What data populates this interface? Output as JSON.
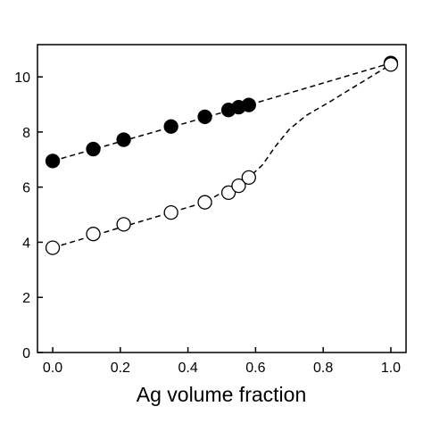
{
  "chart_data": {
    "type": "scatter",
    "xlabel": "Ag volume fraction",
    "xlim": [
      -0.045,
      1.045
    ],
    "ylim": [
      0,
      11.17
    ],
    "xticks": [
      {
        "value": 0,
        "label": "0.0"
      },
      {
        "value": 0.2,
        "label": "0.2"
      },
      {
        "value": 0.4,
        "label": "0.4"
      },
      {
        "value": 0.6,
        "label": "0.6"
      },
      {
        "value": 0.8,
        "label": "0.8"
      },
      {
        "value": 1,
        "label": "1.0"
      }
    ],
    "yticks": [
      0,
      2,
      4,
      6,
      8,
      10
    ],
    "series": [
      {
        "marker": "filled",
        "color": "#000000",
        "x": [
          0,
          0.12,
          0.21,
          0.35,
          0.45,
          0.52,
          0.55,
          0.58,
          1.0
        ],
        "values": [
          6.95,
          7.38,
          7.72,
          8.2,
          8.55,
          8.8,
          8.9,
          8.98,
          10.5
        ]
      },
      {
        "marker": "open",
        "color": "#000000",
        "x": [
          0,
          0.12,
          0.21,
          0.35,
          0.45,
          0.52,
          0.55,
          0.58,
          1.0
        ],
        "values": [
          3.8,
          4.3,
          4.65,
          5.08,
          5.45,
          5.8,
          6.05,
          6.35,
          10.45
        ]
      }
    ],
    "fits": [
      {
        "x": [
          0,
          0.58,
          1.0
        ],
        "values": [
          6.95,
          8.98,
          10.5
        ]
      },
      {
        "x": [
          0,
          0.45,
          0.58,
          0.62,
          0.66,
          0.7,
          0.75,
          0.82,
          0.9,
          1.0
        ],
        "values": [
          3.8,
          5.45,
          6.35,
          6.8,
          7.5,
          8.1,
          8.6,
          9.1,
          9.7,
          10.45
        ]
      }
    ]
  }
}
